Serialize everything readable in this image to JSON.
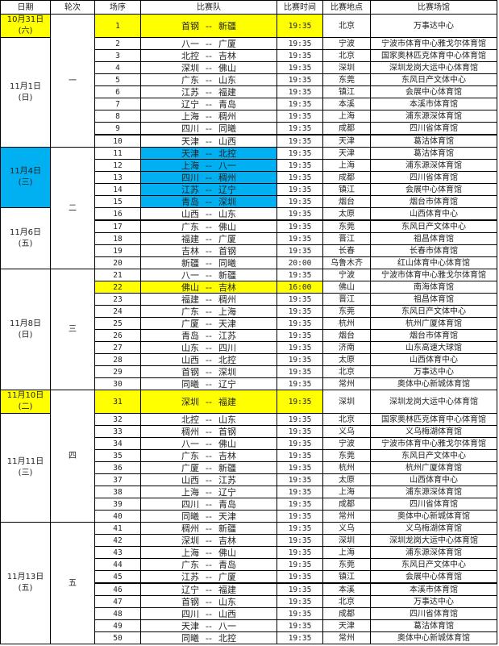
{
  "headers": [
    "日期",
    "轮次",
    "场序",
    "比赛队",
    "比赛时间",
    "比赛地点",
    "比赛场馆"
  ],
  "separator": "--",
  "colors": {
    "highlight_yellow": "#ffff00",
    "highlight_cyan": "#00b0f0"
  },
  "dates": [
    {
      "date": "10月31日",
      "weekday": "(六)",
      "rows": 1,
      "highlight": "yellow"
    },
    {
      "date": "11月1日",
      "weekday": "(日)",
      "rows": 9,
      "highlight": ""
    },
    {
      "date": "11月4日",
      "weekday": "(三)",
      "rows": 5,
      "highlight": "cyan"
    },
    {
      "date": "11月6日",
      "weekday": "(五)",
      "rows": 5,
      "highlight": ""
    },
    {
      "date": "11月8日",
      "weekday": "(日)",
      "rows": 10,
      "highlight": ""
    },
    {
      "date": "11月10日",
      "weekday": "(二)",
      "rows": 1,
      "highlight": "yellow"
    },
    {
      "date": "11月11日",
      "weekday": "(三)",
      "rows": 9,
      "highlight": ""
    },
    {
      "date": "11月13日",
      "weekday": "(五)",
      "rows": 10,
      "highlight": ""
    }
  ],
  "rounds": [
    {
      "label": "一",
      "rows": 10
    },
    {
      "label": "二",
      "rows": 10
    },
    {
      "label": "三",
      "rows": 10
    },
    {
      "label": "四",
      "rows": 10
    },
    {
      "label": "五",
      "rows": 10
    }
  ],
  "games": [
    {
      "seq": "1",
      "home": "首钢",
      "away": "新疆",
      "time": "19:35",
      "city": "北京",
      "venue": "万事达中心",
      "highlight": "yellow"
    },
    {
      "seq": "2",
      "home": "八一",
      "away": "广厦",
      "time": "19:35",
      "city": "宁波",
      "venue": "宁波市体育中心雅戈尔体育馆"
    },
    {
      "seq": "3",
      "home": "北控",
      "away": "吉林",
      "time": "19:35",
      "city": "北京",
      "venue": "国家奥林匹克体育中心体育馆"
    },
    {
      "seq": "4",
      "home": "深圳",
      "away": "佛山",
      "time": "19:35",
      "city": "深圳",
      "venue": "深圳龙岗大运中心体育馆"
    },
    {
      "seq": "5",
      "home": "广东",
      "away": "山东",
      "time": "19:35",
      "city": "东莞",
      "venue": "东风日产文体中心"
    },
    {
      "seq": "6",
      "home": "江苏",
      "away": "福建",
      "time": "19:35",
      "city": "镇江",
      "venue": "会展中心体育馆"
    },
    {
      "seq": "7",
      "home": "辽宁",
      "away": "青岛",
      "time": "19:35",
      "city": "本溪",
      "venue": "本溪市体育馆"
    },
    {
      "seq": "8",
      "home": "上海",
      "away": "稠州",
      "time": "19:35",
      "city": "上海",
      "venue": "浦东源深体育馆"
    },
    {
      "seq": "9",
      "home": "四川",
      "away": "同曦",
      "time": "19:35",
      "city": "成都",
      "venue": "四川省体育馆"
    },
    {
      "seq": "10",
      "home": "天津",
      "away": "山西",
      "time": "19:35",
      "city": "天津",
      "venue": "葛沽体育馆",
      "thick": true
    },
    {
      "seq": "11",
      "home": "天津",
      "away": "北控",
      "time": "19:35",
      "city": "天津",
      "venue": "葛沽体育馆",
      "highlight": "cyan"
    },
    {
      "seq": "12",
      "home": "上海",
      "away": "八一",
      "time": "19:35",
      "city": "上海",
      "venue": "浦东源深体育馆",
      "highlight": "cyan"
    },
    {
      "seq": "13",
      "home": "四川",
      "away": "稠州",
      "time": "19:35",
      "city": "成都",
      "venue": "四川省体育馆",
      "highlight": "cyan"
    },
    {
      "seq": "14",
      "home": "江苏",
      "away": "辽宁",
      "time": "19:35",
      "city": "镇江",
      "venue": "会展中心体育馆",
      "highlight": "cyan"
    },
    {
      "seq": "15",
      "home": "青岛",
      "away": "深圳",
      "time": "19:35",
      "city": "烟台",
      "venue": "烟台市体育馆",
      "highlight": "cyan"
    },
    {
      "seq": "16",
      "home": "山西",
      "away": "山东",
      "time": "19:35",
      "city": "太原",
      "venue": "山西体育中心"
    },
    {
      "seq": "17",
      "home": "广东",
      "away": "佛山",
      "time": "19:35",
      "city": "东莞",
      "venue": "东风日产文体中心",
      "thick": true
    },
    {
      "seq": "18",
      "home": "福建",
      "away": "广厦",
      "time": "19:35",
      "city": "晋江",
      "venue": "祖昌体育馆"
    },
    {
      "seq": "19",
      "home": "吉林",
      "away": "首钢",
      "time": "19:35",
      "city": "长春",
      "venue": "长春市体育馆"
    },
    {
      "seq": "20",
      "home": "新疆",
      "away": "同曦",
      "time": "20:00",
      "city": "乌鲁木齐",
      "venue": "红山体育中心体育馆"
    },
    {
      "seq": "21",
      "home": "八一",
      "away": "新疆",
      "time": "19:35",
      "city": "宁波",
      "venue": "宁波市体育中心雅戈尔体育馆"
    },
    {
      "seq": "22",
      "home": "佛山",
      "away": "吉林",
      "time": "16:00",
      "city": "佛山",
      "venue": "南海体育馆",
      "highlight": "yellow"
    },
    {
      "seq": "23",
      "home": "福建",
      "away": "稠州",
      "time": "19:35",
      "city": "晋江",
      "venue": "祖昌体育馆"
    },
    {
      "seq": "24",
      "home": "广东",
      "away": "上海",
      "time": "19:35",
      "city": "东莞",
      "venue": "东风日产文体中心"
    },
    {
      "seq": "25",
      "home": "广厦",
      "away": "天津",
      "time": "19:35",
      "city": "杭州",
      "venue": "杭州广厦体育馆"
    },
    {
      "seq": "26",
      "home": "青岛",
      "away": "江苏",
      "time": "19:35",
      "city": "烟台",
      "venue": "烟台市体育馆"
    },
    {
      "seq": "27",
      "home": "山东",
      "away": "四川",
      "time": "19:35",
      "city": "济南",
      "venue": "山东高速大球馆"
    },
    {
      "seq": "28",
      "home": "山西",
      "away": "北控",
      "time": "19:35",
      "city": "太原",
      "venue": "山西体育中心"
    },
    {
      "seq": "29",
      "home": "首钢",
      "away": "深圳",
      "time": "19:35",
      "city": "北京",
      "venue": "万事达中心"
    },
    {
      "seq": "30",
      "home": "同曦",
      "away": "辽宁",
      "time": "19:35",
      "city": "常州",
      "venue": "奥体中心新城体育馆"
    },
    {
      "seq": "31",
      "home": "深圳",
      "away": "福建",
      "time": "19:35",
      "city": "深圳",
      "venue": "深圳龙岗大运中心体育馆",
      "highlight": "yellow"
    },
    {
      "seq": "32",
      "home": "北控",
      "away": "山东",
      "time": "19:35",
      "city": "北京",
      "venue": "国家奥林匹克体育中心体育馆"
    },
    {
      "seq": "33",
      "home": "稠州",
      "away": "首钢",
      "time": "19:35",
      "city": "义乌",
      "venue": "义乌梅湖体育馆"
    },
    {
      "seq": "34",
      "home": "八一",
      "away": "佛山",
      "time": "19:35",
      "city": "宁波",
      "venue": "宁波市体育中心雅戈尔体育馆"
    },
    {
      "seq": "35",
      "home": "广东",
      "away": "吉林",
      "time": "19:35",
      "city": "东莞",
      "venue": "东风日产文体中心"
    },
    {
      "seq": "36",
      "home": "广厦",
      "away": "新疆",
      "time": "19:35",
      "city": "杭州",
      "venue": "杭州广厦体育馆"
    },
    {
      "seq": "37",
      "home": "山西",
      "away": "江苏",
      "time": "19:35",
      "city": "太原",
      "venue": "山西体育中心"
    },
    {
      "seq": "38",
      "home": "上海",
      "away": "辽宁",
      "time": "19:35",
      "city": "上海",
      "venue": "浦东源深体育馆"
    },
    {
      "seq": "39",
      "home": "四川",
      "away": "青岛",
      "time": "19:35",
      "city": "成都",
      "venue": "四川省体育馆"
    },
    {
      "seq": "40",
      "home": "同曦",
      "away": "天津",
      "time": "19:35",
      "city": "常州",
      "venue": "奥体中心新城体育馆"
    },
    {
      "seq": "41",
      "home": "稠州",
      "away": "新疆",
      "time": "19:35",
      "city": "义乌",
      "venue": "义乌梅湖体育馆"
    },
    {
      "seq": "42",
      "home": "深圳",
      "away": "吉林",
      "time": "19:35",
      "city": "深圳",
      "venue": "深圳龙岗大运中心体育馆"
    },
    {
      "seq": "43",
      "home": "上海",
      "away": "佛山",
      "time": "19:35",
      "city": "上海",
      "venue": "浦东源深体育馆"
    },
    {
      "seq": "44",
      "home": "广东",
      "away": "青岛",
      "time": "19:35",
      "city": "东莞",
      "venue": "东风日产文体中心"
    },
    {
      "seq": "45",
      "home": "江苏",
      "away": "广厦",
      "time": "19:35",
      "city": "镇江",
      "venue": "会展中心体育馆"
    },
    {
      "seq": "46",
      "home": "辽宁",
      "away": "福建",
      "time": "19:35",
      "city": "本溪",
      "venue": "本溪市体育馆",
      "thick": true
    },
    {
      "seq": "47",
      "home": "首钢",
      "away": "山东",
      "time": "19:35",
      "city": "北京",
      "venue": "万事达中心"
    },
    {
      "seq": "48",
      "home": "四川",
      "away": "山西",
      "time": "19:35",
      "city": "成都",
      "venue": "四川省体育馆"
    },
    {
      "seq": "49",
      "home": "天津",
      "away": "八一",
      "time": "19:35",
      "city": "天津",
      "venue": "葛沽体育馆"
    },
    {
      "seq": "50",
      "home": "同曦",
      "away": "北控",
      "time": "19:35",
      "city": "常州",
      "venue": "奥体中心新城体育馆"
    }
  ]
}
